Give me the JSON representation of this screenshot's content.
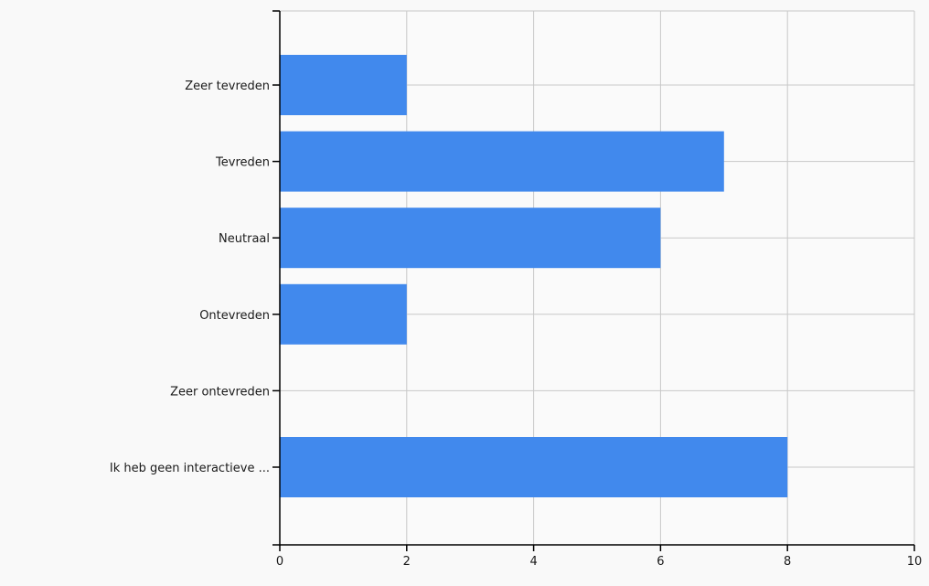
{
  "chart_data": {
    "type": "bar",
    "orientation": "horizontal",
    "title": "",
    "xlabel": "",
    "ylabel": "",
    "categories": [
      "Zeer tevreden",
      "Tevreden",
      "Neutraal",
      "Ontevreden",
      "Zeer ontevreden",
      "Ik heb geen interactieve ..."
    ],
    "values": [
      2,
      7,
      6,
      2,
      0,
      8
    ],
    "xlim": [
      0,
      10
    ],
    "xticks": [
      "0",
      "2",
      "4",
      "6",
      "8",
      "10"
    ],
    "grid": true,
    "legend": "none",
    "colors": {
      "bar": "#4189ed",
      "grid": "#c8c8c8",
      "axis": "#000000",
      "background": "#f9f9f9"
    }
  }
}
